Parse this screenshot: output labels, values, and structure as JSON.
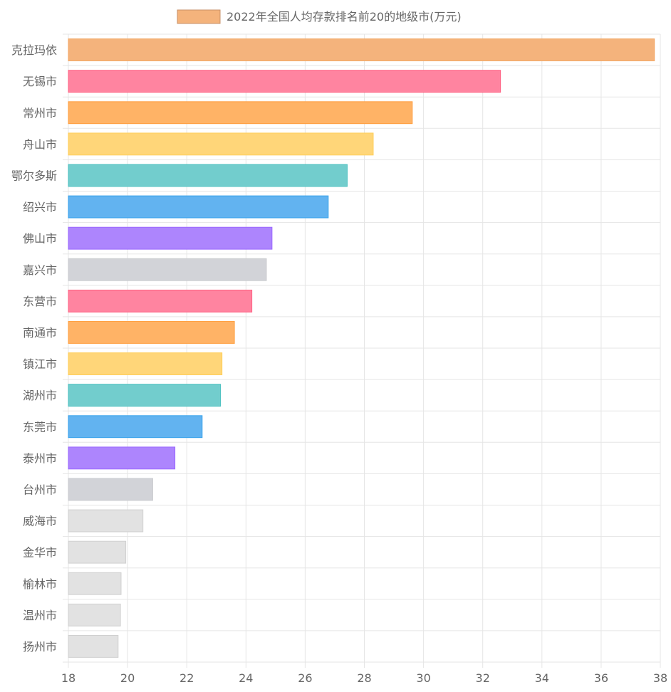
{
  "chart_data": {
    "type": "bar",
    "orientation": "horizontal",
    "legend_label": "2022年全国人均存款排名前20的地级市(万元)",
    "legend_position": "top",
    "grid": true,
    "xlim": [
      18,
      38
    ],
    "x_ticks": [
      "18",
      "20",
      "22",
      "24",
      "26",
      "28",
      "30",
      "32",
      "34",
      "36",
      "38"
    ],
    "categories": [
      "克拉玛依",
      "无锡市",
      "常州市",
      "舟山市",
      "鄂尔多斯",
      "绍兴市",
      "佛山市",
      "嘉兴市",
      "东营市",
      "南通市",
      "镇江市",
      "湖州市",
      "东莞市",
      "泰州市",
      "台州市",
      "威海市",
      "金华市",
      "榆林市",
      "温州市",
      "扬州市"
    ],
    "values": [
      37.8,
      32.6,
      29.62,
      28.3,
      27.42,
      26.78,
      24.88,
      24.69,
      24.2,
      23.61,
      23.19,
      23.14,
      22.52,
      21.6,
      20.85,
      20.52,
      19.94,
      19.78,
      19.76,
      19.68
    ],
    "colors": [
      {
        "fill": "#f4b37c",
        "stroke": "#f3a763"
      },
      {
        "fill": "#ff84a0",
        "stroke": "#ff6384"
      },
      {
        "fill": "#ffb366",
        "stroke": "#ff9f40"
      },
      {
        "fill": "#ffd679",
        "stroke": "#ffcd56"
      },
      {
        "fill": "#72cdcd",
        "stroke": "#4bc0c0"
      },
      {
        "fill": "#62b3f0",
        "stroke": "#36a2eb"
      },
      {
        "fill": "#ad85fd",
        "stroke": "#9966ff"
      },
      {
        "fill": "#d2d3d8",
        "stroke": "#c9cbcf"
      },
      {
        "fill": "#ff84a0",
        "stroke": "#ff6384"
      },
      {
        "fill": "#ffb366",
        "stroke": "#ff9f40"
      },
      {
        "fill": "#ffd679",
        "stroke": "#ffcd56"
      },
      {
        "fill": "#72cdcd",
        "stroke": "#4bc0c0"
      },
      {
        "fill": "#62b3f0",
        "stroke": "#36a2eb"
      },
      {
        "fill": "#ad85fd",
        "stroke": "#9966ff"
      },
      {
        "fill": "#d2d3d8",
        "stroke": "#c9cbcf"
      },
      {
        "fill": "#e2e2e2",
        "stroke": "#d0d0d0"
      },
      {
        "fill": "#e2e2e2",
        "stroke": "#d0d0d0"
      },
      {
        "fill": "#e2e2e2",
        "stroke": "#d0d0d0"
      },
      {
        "fill": "#e2e2e2",
        "stroke": "#d0d0d0"
      },
      {
        "fill": "#e2e2e2",
        "stroke": "#d0d0d0"
      }
    ],
    "legend_color": {
      "fill": "#f4b37c",
      "stroke": "#c8926a"
    },
    "grid_color": "#e5e5e5"
  }
}
